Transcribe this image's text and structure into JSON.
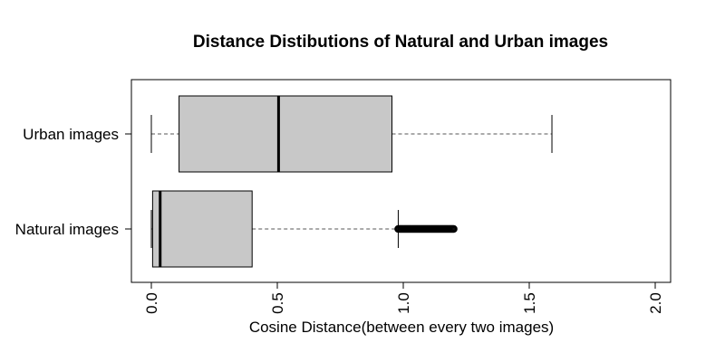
{
  "chart_data": {
    "type": "boxplot",
    "orientation": "horizontal",
    "title": "Distance Distibutions of Natural and Urban images",
    "xlabel": "Cosine Distance(between every two images)",
    "ylabel": "",
    "xlim": [
      0,
      2
    ],
    "xticks": [
      0.0,
      0.5,
      1.0,
      1.5,
      2.0
    ],
    "xtick_labels": [
      "0.0",
      "0.5",
      "1.0",
      "1.5",
      "2.0"
    ],
    "grid": false,
    "box_fill": "#c8c8c8",
    "categories": [
      "Natural images",
      "Urban images"
    ],
    "boxes": [
      {
        "name": "Natural images",
        "whisker_low": 0.0,
        "q1": 0.005,
        "median": 0.035,
        "q3": 0.4,
        "whisker_high": 0.98,
        "outliers_range": [
          0.98,
          1.2
        ]
      },
      {
        "name": "Urban images",
        "whisker_low": 0.0,
        "q1": 0.11,
        "median": 0.505,
        "q3": 0.955,
        "whisker_high": 1.59,
        "outliers_range": null
      }
    ]
  }
}
